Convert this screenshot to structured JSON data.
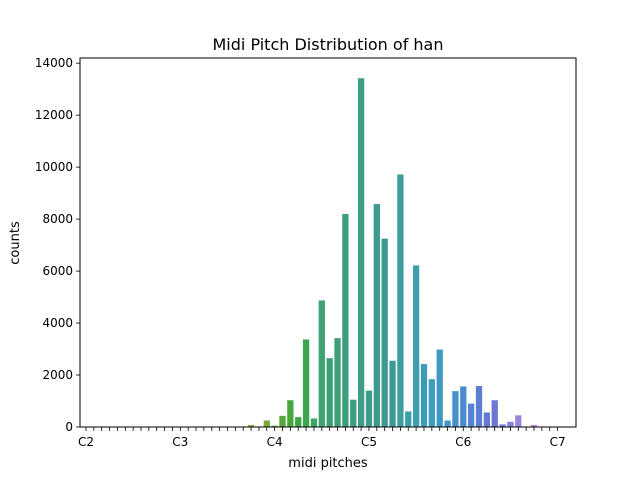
{
  "chart_data": {
    "type": "bar",
    "title": "Midi Pitch Distribution of han",
    "xlabel": "midi pitches",
    "ylabel": "counts",
    "ylim": [
      0,
      14200
    ],
    "yticks": [
      0,
      2000,
      4000,
      6000,
      8000,
      10000,
      12000,
      14000
    ],
    "x_range": [
      36,
      96
    ],
    "xtick_labels": [
      {
        "pitch": 36,
        "label": "C2"
      },
      {
        "pitch": 48,
        "label": "C3"
      },
      {
        "pitch": 60,
        "label": "C4"
      },
      {
        "pitch": 72,
        "label": "C5"
      },
      {
        "pitch": 84,
        "label": "C6"
      },
      {
        "pitch": 96,
        "label": "C7"
      }
    ],
    "pitches": [
      36,
      37,
      38,
      39,
      40,
      41,
      42,
      43,
      44,
      45,
      46,
      47,
      48,
      49,
      50,
      51,
      52,
      53,
      54,
      55,
      56,
      57,
      58,
      59,
      60,
      61,
      62,
      63,
      64,
      65,
      66,
      67,
      68,
      69,
      70,
      71,
      72,
      73,
      74,
      75,
      76,
      77,
      78,
      79,
      80,
      81,
      82,
      83,
      84,
      85,
      86,
      87,
      88,
      89,
      90,
      91,
      92,
      93,
      94,
      95,
      96
    ],
    "values": [
      0,
      0,
      0,
      0,
      0,
      0,
      0,
      0,
      0,
      0,
      0,
      0,
      0,
      0,
      0,
      0,
      0,
      0,
      0,
      0,
      0,
      80,
      0,
      250,
      50,
      430,
      1030,
      380,
      3370,
      330,
      4870,
      2650,
      3420,
      8200,
      1050,
      13420,
      1400,
      8580,
      7250,
      2550,
      9720,
      600,
      6220,
      2420,
      1840,
      2980,
      250,
      1380,
      1560,
      900,
      1580,
      560,
      1030,
      100,
      200,
      450,
      0,
      80,
      0,
      0,
      0
    ],
    "grid": false,
    "legend": "none"
  }
}
